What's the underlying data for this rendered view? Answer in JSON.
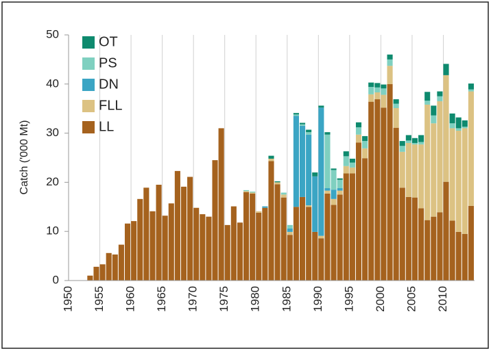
{
  "chart_data": {
    "type": "stacked-bar",
    "y_label": "Catch ('000 Mt)",
    "x": [
      1950,
      1951,
      1952,
      1953,
      1954,
      1955,
      1956,
      1957,
      1958,
      1959,
      1960,
      1961,
      1962,
      1963,
      1964,
      1965,
      1966,
      1967,
      1968,
      1969,
      1970,
      1971,
      1972,
      1973,
      1974,
      1975,
      1976,
      1977,
      1978,
      1979,
      1980,
      1981,
      1982,
      1983,
      1984,
      1985,
      1986,
      1987,
      1988,
      1989,
      1990,
      1991,
      1992,
      1993,
      1994,
      1995,
      1996,
      1997,
      1998,
      1999,
      2000,
      2001,
      2002,
      2003,
      2004,
      2005,
      2006,
      2007,
      2008,
      2009,
      2010,
      2011,
      2012,
      2013,
      2014
    ],
    "xlim": [
      1950,
      2015
    ],
    "xticks": [
      1950,
      1955,
      1960,
      1965,
      1970,
      1975,
      1980,
      1985,
      1990,
      1995,
      2000,
      2005,
      2010
    ],
    "ylim": [
      0,
      50
    ],
    "yticks": [
      0,
      10,
      20,
      30,
      40,
      50
    ],
    "grid": true,
    "legend": "upper-left",
    "series": [
      {
        "name": "LL",
        "color": "#a5621e",
        "values": [
          0,
          0,
          0,
          1.0,
          2.8,
          3.3,
          5.6,
          5.3,
          7.3,
          11.6,
          12.1,
          16.6,
          18.9,
          14.1,
          19.5,
          13.2,
          15.7,
          22.3,
          19.1,
          21.1,
          14.8,
          13.5,
          13.0,
          24.5,
          31.0,
          11.3,
          15.1,
          11.8,
          18.0,
          17.7,
          13.8,
          14.8,
          24.3,
          19.6,
          16.9,
          9.3,
          15.0,
          17.0,
          15.0,
          9.9,
          8.6,
          17.7,
          15.4,
          17.5,
          21.8,
          21.8,
          28.1,
          24.9,
          36.4,
          36.9,
          35.2,
          40.0,
          31.1,
          18.9,
          17.0,
          16.9,
          14.7,
          12.3,
          13.0,
          13.9,
          20.1,
          12.2,
          9.9,
          9.5,
          15.2
        ]
      },
      {
        "name": "FLL",
        "color": "#dcc283",
        "values": [
          0,
          0,
          0,
          0,
          0,
          0,
          0,
          0,
          0,
          0,
          0,
          0,
          0,
          0,
          0,
          0,
          0,
          0,
          0,
          0,
          0,
          0,
          0,
          0,
          0,
          0,
          0,
          0,
          0.2,
          0.2,
          0.3,
          0,
          0.5,
          0.4,
          0.6,
          0.6,
          0,
          0,
          0.3,
          0,
          0.5,
          0.6,
          1.2,
          0.8,
          1.5,
          1.2,
          1.6,
          2.0,
          1.5,
          1.4,
          2.6,
          3.7,
          4.0,
          7.3,
          11.0,
          10.8,
          13.0,
          23.5,
          19.0,
          22.6,
          21.7,
          18.8,
          20.6,
          21.5,
          23.3
        ]
      },
      {
        "name": "DN",
        "color": "#3ba5c4",
        "values": [
          0,
          0,
          0,
          0,
          0,
          0,
          0,
          0,
          0,
          0,
          0,
          0,
          0,
          0,
          0,
          0,
          0,
          0,
          0,
          0,
          0,
          0,
          0,
          0,
          0,
          0,
          0,
          0,
          0,
          0,
          0,
          0.3,
          0,
          0,
          0,
          0.7,
          18.5,
          14.5,
          14.4,
          11.3,
          26.1,
          0.5,
          1.9,
          0.5,
          0,
          0,
          0,
          0,
          0,
          0,
          0,
          0,
          0,
          0,
          0,
          0,
          0,
          0,
          0,
          0,
          0,
          0,
          0,
          0,
          0
        ]
      },
      {
        "name": "PS",
        "color": "#7fd0c0",
        "values": [
          0,
          0,
          0,
          0,
          0,
          0,
          0,
          0,
          0,
          0,
          0,
          0,
          0,
          0,
          0,
          0,
          0,
          0,
          0,
          0,
          0,
          0,
          0,
          0,
          0,
          0,
          0,
          0,
          0.2,
          0.2,
          0,
          0,
          0,
          0,
          0.4,
          0.7,
          0.3,
          0.3,
          0.5,
          0,
          0,
          10.9,
          4.0,
          1.7,
          2.0,
          1.0,
          1.5,
          1.5,
          1.5,
          1.0,
          1.3,
          1.3,
          0.9,
          1.2,
          0.5,
          0.3,
          0.5,
          0.8,
          1.6,
          1.0,
          0,
          1.0,
          0.5,
          0.3,
          0.4
        ]
      },
      {
        "name": "OT",
        "color": "#0e8a6e",
        "values": [
          0,
          0,
          0,
          0,
          0,
          0,
          0,
          0,
          0,
          0,
          0,
          0,
          0,
          0,
          0,
          0,
          0,
          0,
          0,
          0,
          0,
          0,
          0,
          0,
          0,
          0,
          0,
          0,
          0,
          0,
          0,
          0,
          0.6,
          0.2,
          0,
          0,
          0.3,
          0.3,
          0.5,
          0.8,
          0.4,
          0.5,
          0.3,
          0.3,
          1.0,
          0.8,
          1.0,
          1.0,
          0.9,
          0.9,
          0.8,
          1.0,
          0.9,
          1.0,
          1.1,
          1.0,
          1.4,
          1.8,
          2.0,
          1.0,
          2.3,
          2.0,
          2.2,
          1.3,
          1.2
        ]
      }
    ]
  }
}
